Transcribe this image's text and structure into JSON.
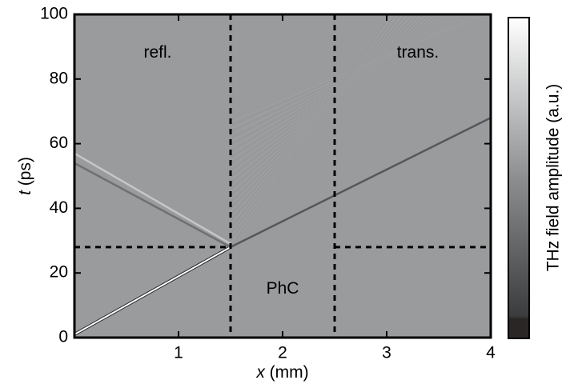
{
  "chart_data": {
    "type": "heatmap",
    "colormap": "gray",
    "background_color": "#999b9d",
    "xlabel_symbol": "x",
    "xlabel_unit": "(mm)",
    "ylabel_symbol": "t",
    "ylabel_unit": "(ps)",
    "colorbar_label": "THz field amplitude (a.u.)",
    "xlim": [
      0,
      4
    ],
    "ylim": [
      0,
      100
    ],
    "xticks": [
      1,
      2,
      3,
      4
    ],
    "yticks": [
      0,
      20,
      40,
      60,
      80,
      100
    ],
    "boundaries_x": [
      1.5,
      2.5
    ],
    "boundary_y": 28,
    "annotations": [
      "refl.",
      "PhC",
      "trans."
    ],
    "series": [
      {
        "color": "#ffffff",
        "x": [
          0,
          1.5
        ],
        "values": [
          1,
          28
        ]
      },
      {
        "color": "#6e7072",
        "x": [
          1.5,
          0
        ],
        "values": [
          28,
          54
        ]
      },
      {
        "color": "#c4c6c8",
        "x": [
          1.5,
          0
        ],
        "values": [
          29,
          57
        ]
      },
      {
        "color": "#55575a",
        "x": [
          1.5,
          4
        ],
        "values": [
          28,
          68
        ]
      }
    ]
  }
}
